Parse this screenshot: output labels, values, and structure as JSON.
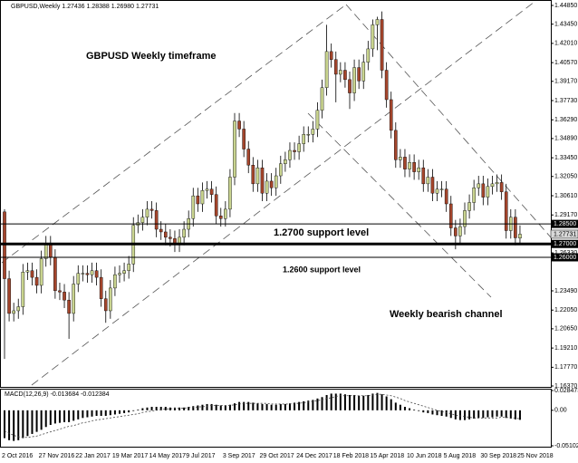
{
  "chart_data": {
    "type": "candlestick",
    "title": "GBPUSD,Weekly  1.27436 1.28388 1.26980 1.27731",
    "annotations": [
      "GBPUSD Weekly timeframe",
      "1.2700 support level",
      "1.2600 support level",
      "Weekly bearish channel"
    ],
    "up_color": "#c9d48f",
    "down_color": "#a4452c",
    "categories": [
      "2 Oct 2016",
      null,
      null,
      null,
      null,
      null,
      null,
      null,
      "27 Nov 2016",
      null,
      null,
      null,
      null,
      null,
      null,
      null,
      "22 Jan 2017",
      null,
      null,
      null,
      null,
      null,
      null,
      null,
      "19 Mar 2017",
      null,
      null,
      null,
      null,
      null,
      null,
      null,
      "14 May 2017",
      null,
      null,
      null,
      null,
      null,
      null,
      null,
      "9 Jul 2017",
      null,
      null,
      null,
      null,
      null,
      null,
      null,
      "3 Sep 2017",
      null,
      null,
      null,
      null,
      null,
      null,
      null,
      "29 Oct 2017",
      null,
      null,
      null,
      null,
      null,
      null,
      null,
      "24 Dec 2017",
      null,
      null,
      null,
      null,
      null,
      null,
      null,
      "18 Feb 2018",
      null,
      null,
      null,
      null,
      null,
      null,
      null,
      "15 Apr 2018",
      null,
      null,
      null,
      null,
      null,
      null,
      null,
      "10 Jun 2018",
      null,
      null,
      null,
      null,
      null,
      null,
      null,
      "5 Aug 2018",
      null,
      null,
      null,
      null,
      null,
      null,
      null,
      "30 Sep 2018",
      null,
      null,
      null,
      null,
      null,
      null,
      null,
      "25 Nov 2018"
    ],
    "open": [
      1.294,
      1.244,
      1.218,
      1.22,
      1.223,
      1.249,
      1.25,
      1.245,
      1.239,
      1.259,
      1.27,
      1.26,
      1.235,
      1.234,
      1.228,
      1.218,
      1.24,
      1.248,
      1.248,
      1.247,
      1.25,
      1.245,
      1.229,
      1.22,
      1.237,
      1.247,
      1.248,
      1.25,
      1.255,
      1.284,
      1.286,
      1.29,
      1.296,
      1.295,
      1.281,
      1.279,
      1.275,
      1.274,
      1.27,
      1.275,
      1.281,
      1.289,
      1.306,
      1.3,
      1.31,
      1.311,
      1.307,
      1.291,
      1.289,
      1.296,
      1.32,
      1.362,
      1.356,
      1.341,
      1.329,
      1.315,
      1.327,
      1.308,
      1.317,
      1.312,
      1.321,
      1.33,
      1.333,
      1.34,
      1.339,
      1.345,
      1.352,
      1.352,
      1.356,
      1.37,
      1.387,
      1.414,
      1.408,
      1.397,
      1.4,
      1.393,
      1.383,
      1.402,
      1.392,
      1.406,
      1.416,
      1.434,
      1.438,
      1.4,
      1.378,
      1.355,
      1.333,
      1.335,
      1.326,
      1.331,
      1.324,
      1.327,
      1.315,
      1.32,
      1.308,
      1.311,
      1.311,
      1.3,
      1.282,
      1.276,
      1.283,
      1.295,
      1.301,
      1.312,
      1.315,
      1.305,
      1.313,
      1.315,
      1.316,
      1.309,
      1.28,
      1.29,
      1.27436
    ],
    "high": [
      1.296,
      1.25,
      1.226,
      1.229,
      1.255,
      1.256,
      1.256,
      1.251,
      1.265,
      1.276,
      1.276,
      1.266,
      1.241,
      1.24,
      1.234,
      1.246,
      1.254,
      1.254,
      1.254,
      1.256,
      1.256,
      1.251,
      1.235,
      1.243,
      1.253,
      1.254,
      1.256,
      1.261,
      1.29,
      1.292,
      1.296,
      1.302,
      1.302,
      1.301,
      1.287,
      1.285,
      1.281,
      1.28,
      1.281,
      1.287,
      1.295,
      1.312,
      1.312,
      1.316,
      1.317,
      1.317,
      1.313,
      1.297,
      1.302,
      1.326,
      1.368,
      1.368,
      1.362,
      1.347,
      1.335,
      1.333,
      1.333,
      1.323,
      1.323,
      1.327,
      1.336,
      1.339,
      1.346,
      1.346,
      1.351,
      1.358,
      1.358,
      1.362,
      1.376,
      1.393,
      1.434,
      1.42,
      1.414,
      1.406,
      1.406,
      1.399,
      1.408,
      1.408,
      1.412,
      1.422,
      1.438,
      1.44,
      1.444,
      1.406,
      1.384,
      1.361,
      1.341,
      1.341,
      1.337,
      1.337,
      1.333,
      1.333,
      1.326,
      1.326,
      1.317,
      1.317,
      1.317,
      1.306,
      1.288,
      1.289,
      1.301,
      1.307,
      1.318,
      1.321,
      1.321,
      1.319,
      1.321,
      1.322,
      1.322,
      1.315,
      1.296,
      1.296,
      1.28388
    ],
    "low": [
      1.184,
      1.212,
      1.212,
      1.214,
      1.217,
      1.243,
      1.239,
      1.233,
      1.233,
      1.253,
      1.254,
      1.229,
      1.228,
      1.222,
      1.199,
      1.212,
      1.234,
      1.242,
      1.241,
      1.241,
      1.239,
      1.223,
      1.211,
      1.214,
      1.231,
      1.241,
      1.242,
      1.244,
      1.249,
      1.278,
      1.28,
      1.284,
      1.289,
      1.275,
      1.273,
      1.269,
      1.268,
      1.264,
      1.264,
      1.269,
      1.275,
      1.283,
      1.294,
      1.294,
      1.304,
      1.301,
      1.285,
      1.283,
      1.283,
      1.29,
      1.314,
      1.35,
      1.335,
      1.323,
      1.309,
      1.309,
      1.302,
      1.302,
      1.306,
      1.306,
      1.315,
      1.324,
      1.327,
      1.333,
      1.333,
      1.339,
      1.346,
      1.346,
      1.35,
      1.364,
      1.381,
      1.402,
      1.376,
      1.391,
      1.387,
      1.371,
      1.377,
      1.386,
      1.386,
      1.4,
      1.41,
      1.415,
      1.394,
      1.372,
      1.349,
      1.327,
      1.327,
      1.32,
      1.32,
      1.318,
      1.318,
      1.309,
      1.309,
      1.302,
      1.302,
      1.305,
      1.294,
      1.276,
      1.266,
      1.27,
      1.277,
      1.289,
      1.295,
      1.306,
      1.299,
      1.299,
      1.307,
      1.309,
      1.303,
      1.274,
      1.274,
      1.269,
      1.2698
    ],
    "close": [
      1.244,
      1.218,
      1.22,
      1.223,
      1.249,
      1.25,
      1.245,
      1.239,
      1.259,
      1.27,
      1.26,
      1.235,
      1.234,
      1.228,
      1.218,
      1.24,
      1.248,
      1.248,
      1.247,
      1.25,
      1.245,
      1.229,
      1.22,
      1.237,
      1.247,
      1.248,
      1.25,
      1.255,
      1.284,
      1.286,
      1.29,
      1.296,
      1.295,
      1.281,
      1.279,
      1.275,
      1.274,
      1.27,
      1.275,
      1.281,
      1.289,
      1.306,
      1.3,
      1.31,
      1.311,
      1.307,
      1.291,
      1.289,
      1.296,
      1.32,
      1.362,
      1.356,
      1.341,
      1.329,
      1.315,
      1.327,
      1.308,
      1.317,
      1.312,
      1.321,
      1.33,
      1.333,
      1.34,
      1.339,
      1.345,
      1.352,
      1.352,
      1.356,
      1.37,
      1.387,
      1.414,
      1.408,
      1.397,
      1.4,
      1.393,
      1.383,
      1.402,
      1.392,
      1.406,
      1.416,
      1.434,
      1.438,
      1.4,
      1.378,
      1.355,
      1.333,
      1.335,
      1.326,
      1.331,
      1.324,
      1.327,
      1.315,
      1.32,
      1.308,
      1.311,
      1.311,
      1.3,
      1.282,
      1.276,
      1.283,
      1.295,
      1.301,
      1.312,
      1.315,
      1.305,
      1.313,
      1.315,
      1.316,
      1.309,
      1.28,
      1.29,
      1.2746,
      1.27731
    ],
    "ylim": [
      1.1637,
      1.4485
    ],
    "yticks": [
      {
        "value": 1.4485,
        "label": "1.44850"
      },
      {
        "value": 1.4345,
        "label": "1.43450"
      },
      {
        "value": 1.4201,
        "label": "1.42010"
      },
      {
        "value": 1.4057,
        "label": "1.40570"
      },
      {
        "value": 1.3917,
        "label": "1.39170"
      },
      {
        "value": 1.3773,
        "label": "1.37730"
      },
      {
        "value": 1.3629,
        "label": "1.36290"
      },
      {
        "value": 1.3489,
        "label": "1.34890"
      },
      {
        "value": 1.3345,
        "label": "1.33450"
      },
      {
        "value": 1.3205,
        "label": "1.32050"
      },
      {
        "value": 1.3061,
        "label": "1.30610"
      },
      {
        "value": 1.2917,
        "label": "1.29170"
      },
      {
        "value": 1.2633,
        "label": "1.26330"
      },
      {
        "value": 1.2349,
        "label": "1.23490"
      },
      {
        "value": 1.2205,
        "label": "1.22050"
      },
      {
        "value": 1.2065,
        "label": "1.20650"
      },
      {
        "value": 1.1921,
        "label": "1.19210"
      },
      {
        "value": 1.1777,
        "label": "1.17770"
      },
      {
        "value": 1.1637,
        "label": "1.16370"
      }
    ],
    "levels": [
      {
        "value": 1.285,
        "label": "1.28500",
        "line_width": 1
      },
      {
        "value": 1.27,
        "label": "1.27000",
        "line_width": 3
      },
      {
        "value": 1.26,
        "label": "1.26000",
        "line_width": 1
      }
    ],
    "last_price": {
      "value": 1.27731,
      "label": "1.27731"
    },
    "macd": {
      "title": "MACD(12,26,9) -0.013684 -0.012384",
      "ylim": [
        -0.051023,
        0.028473
      ],
      "yticks": [
        0.028473,
        {
          "value": 0,
          "label": "0.00"
        },
        -0.051023
      ],
      "histogram": [
        -0.04,
        -0.043,
        -0.044,
        -0.043,
        -0.04,
        -0.037,
        -0.034,
        -0.031,
        -0.028,
        -0.024,
        -0.021,
        -0.019,
        -0.018,
        -0.017,
        -0.017,
        -0.015,
        -0.013,
        -0.011,
        -0.01,
        -0.009,
        -0.008,
        -0.008,
        -0.008,
        -0.007,
        -0.006,
        -0.005,
        -0.004,
        -0.003,
        -0.001,
        0.001,
        0.003,
        0.004,
        0.005,
        0.005,
        0.005,
        0.005,
        0.004,
        0.004,
        0.004,
        0.004,
        0.005,
        0.006,
        0.007,
        0.008,
        0.009,
        0.009,
        0.008,
        0.007,
        0.007,
        0.008,
        0.01,
        0.012,
        0.012,
        0.012,
        0.011,
        0.01,
        0.009,
        0.009,
        0.008,
        0.008,
        0.009,
        0.009,
        0.01,
        0.011,
        0.012,
        0.013,
        0.014,
        0.015,
        0.017,
        0.019,
        0.022,
        0.024,
        0.024,
        0.024,
        0.023,
        0.022,
        0.022,
        0.021,
        0.021,
        0.022,
        0.024,
        0.025,
        0.023,
        0.02,
        0.016,
        0.011,
        0.008,
        0.005,
        0.003,
        0.001,
        -0.001,
        -0.003,
        -0.004,
        -0.006,
        -0.007,
        -0.008,
        -0.009,
        -0.011,
        -0.013,
        -0.014,
        -0.014,
        -0.013,
        -0.012,
        -0.011,
        -0.011,
        -0.01,
        -0.01,
        -0.009,
        -0.009,
        -0.011,
        -0.012,
        -0.013,
        -0.013684
      ],
      "signal": [
        -0.03,
        -0.033,
        -0.036,
        -0.038,
        -0.039,
        -0.039,
        -0.038,
        -0.037,
        -0.035,
        -0.033,
        -0.031,
        -0.029,
        -0.027,
        -0.025,
        -0.023,
        -0.022,
        -0.02,
        -0.018,
        -0.017,
        -0.015,
        -0.014,
        -0.013,
        -0.012,
        -0.011,
        -0.01,
        -0.009,
        -0.008,
        -0.007,
        -0.006,
        -0.005,
        -0.003,
        -0.002,
        -0.001,
        0.0,
        0.001,
        0.002,
        0.002,
        0.003,
        0.003,
        0.003,
        0.004,
        0.004,
        0.005,
        0.005,
        0.006,
        0.007,
        0.007,
        0.007,
        0.007,
        0.007,
        0.008,
        0.009,
        0.01,
        0.01,
        0.01,
        0.01,
        0.01,
        0.01,
        0.009,
        0.009,
        0.009,
        0.009,
        0.009,
        0.01,
        0.01,
        0.011,
        0.012,
        0.013,
        0.014,
        0.015,
        0.017,
        0.018,
        0.02,
        0.021,
        0.021,
        0.021,
        0.021,
        0.021,
        0.021,
        0.021,
        0.022,
        0.023,
        0.023,
        0.022,
        0.021,
        0.019,
        0.017,
        0.014,
        0.012,
        0.01,
        0.008,
        0.006,
        0.004,
        0.002,
        0.0,
        -0.002,
        -0.003,
        -0.005,
        -0.007,
        -0.008,
        -0.009,
        -0.01,
        -0.011,
        -0.011,
        -0.011,
        -0.011,
        -0.011,
        -0.011,
        -0.01,
        -0.01,
        -0.011,
        -0.011,
        -0.012384
      ]
    }
  }
}
